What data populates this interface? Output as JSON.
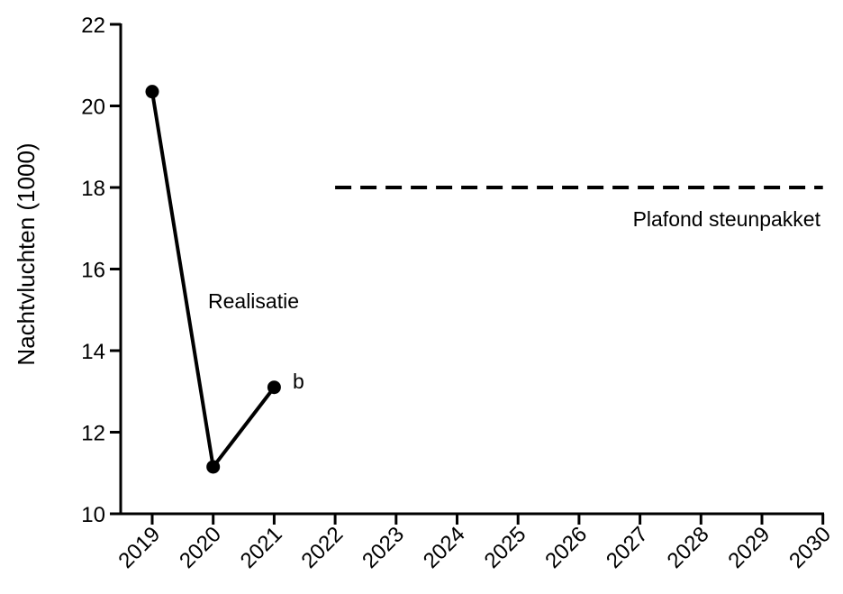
{
  "chart_data": {
    "type": "line",
    "title": "",
    "xlabel": "",
    "ylabel": "Nachtvluchten (1000)",
    "ylim": [
      10,
      22
    ],
    "yticks": [
      10,
      12,
      14,
      16,
      18,
      20,
      22
    ],
    "categories": [
      "2019",
      "2020",
      "2021",
      "2022",
      "2023",
      "2024",
      "2025",
      "2026",
      "2027",
      "2028",
      "2029",
      "2030"
    ],
    "grid": false,
    "series": [
      {
        "name": "Realisatie",
        "x": [
          "2019",
          "2020",
          "2021"
        ],
        "values": [
          20.35,
          11.15,
          13.1
        ],
        "style": "solid",
        "markers": true,
        "color": "#000000"
      },
      {
        "name": "Plafond steunpakket",
        "x": [
          "2022",
          "2030"
        ],
        "values": [
          18.0,
          18.0
        ],
        "style": "dashed",
        "markers": false,
        "color": "#000000"
      }
    ],
    "annotations": [
      {
        "text": "Realisatie"
      },
      {
        "text": "Plafond steunpakket"
      },
      {
        "text": "b"
      }
    ]
  }
}
